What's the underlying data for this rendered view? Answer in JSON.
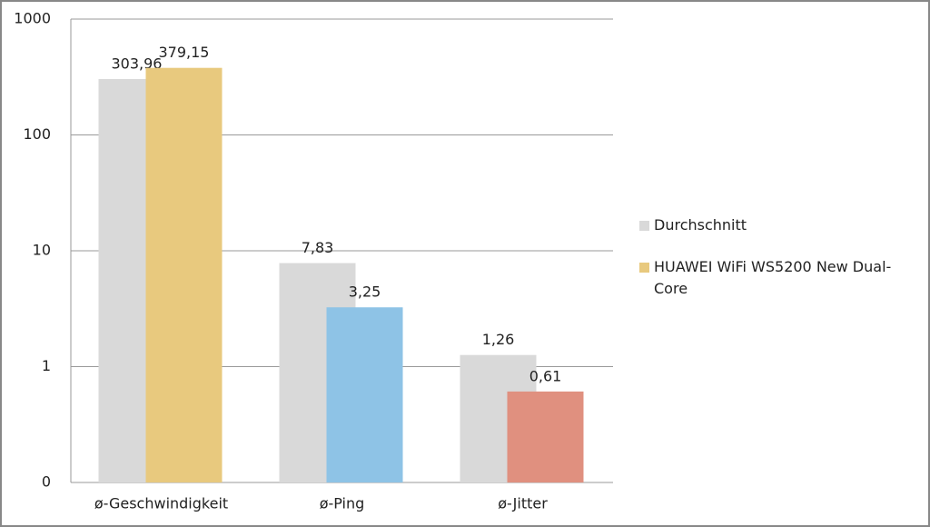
{
  "chart_data": {
    "type": "bar",
    "categories": [
      "ø-Geschwindigkeit",
      "ø-Ping",
      "ø-Jitter"
    ],
    "series": [
      {
        "name": "Durchschnitt",
        "color": "#d9d9d9",
        "values": [
          303.96,
          7.83,
          1.26
        ],
        "value_labels": [
          "303,96",
          "7,83",
          "1,26"
        ]
      },
      {
        "name": "HUAWEI WiFi WS5200 New Dual-Core",
        "color": "#e8c97e",
        "colors": [
          "#e8c97e",
          "#8ec3e6",
          "#e0907f"
        ],
        "values": [
          379.15,
          3.25,
          0.61
        ],
        "value_labels": [
          "379,15",
          "3,25",
          "0,61"
        ]
      }
    ],
    "log_scale": true,
    "ylim": [
      0.1,
      1000
    ],
    "yticks": [
      {
        "value": 0.1,
        "label": "0"
      },
      1,
      10,
      100,
      1000
    ],
    "grid": true,
    "legend": "right"
  }
}
